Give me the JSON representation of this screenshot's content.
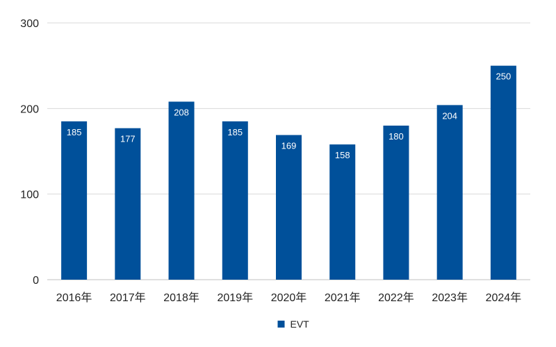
{
  "chart_data": {
    "type": "bar",
    "title": "",
    "xlabel": "",
    "ylabel": "",
    "categories": [
      "2016年",
      "2017年",
      "2018年",
      "2019年",
      "2020年",
      "2021年",
      "2022年",
      "2023年",
      "2024年"
    ],
    "series": [
      {
        "name": "EVT",
        "values": [
          185,
          177,
          208,
          185,
          169,
          158,
          180,
          204,
          250
        ],
        "color": "#00509A"
      }
    ],
    "ylim": [
      0,
      300
    ],
    "yticks": [
      0,
      100,
      200,
      300
    ],
    "grid": true,
    "data_labels": true,
    "legend": {
      "position": "bottom",
      "entries": [
        "EVT"
      ]
    }
  },
  "colors": {
    "bar": "#00509A",
    "grid": "#D9D9D9",
    "axis": "#BFBFBF",
    "text": "#222222",
    "label_text": "#FFFFFF"
  }
}
